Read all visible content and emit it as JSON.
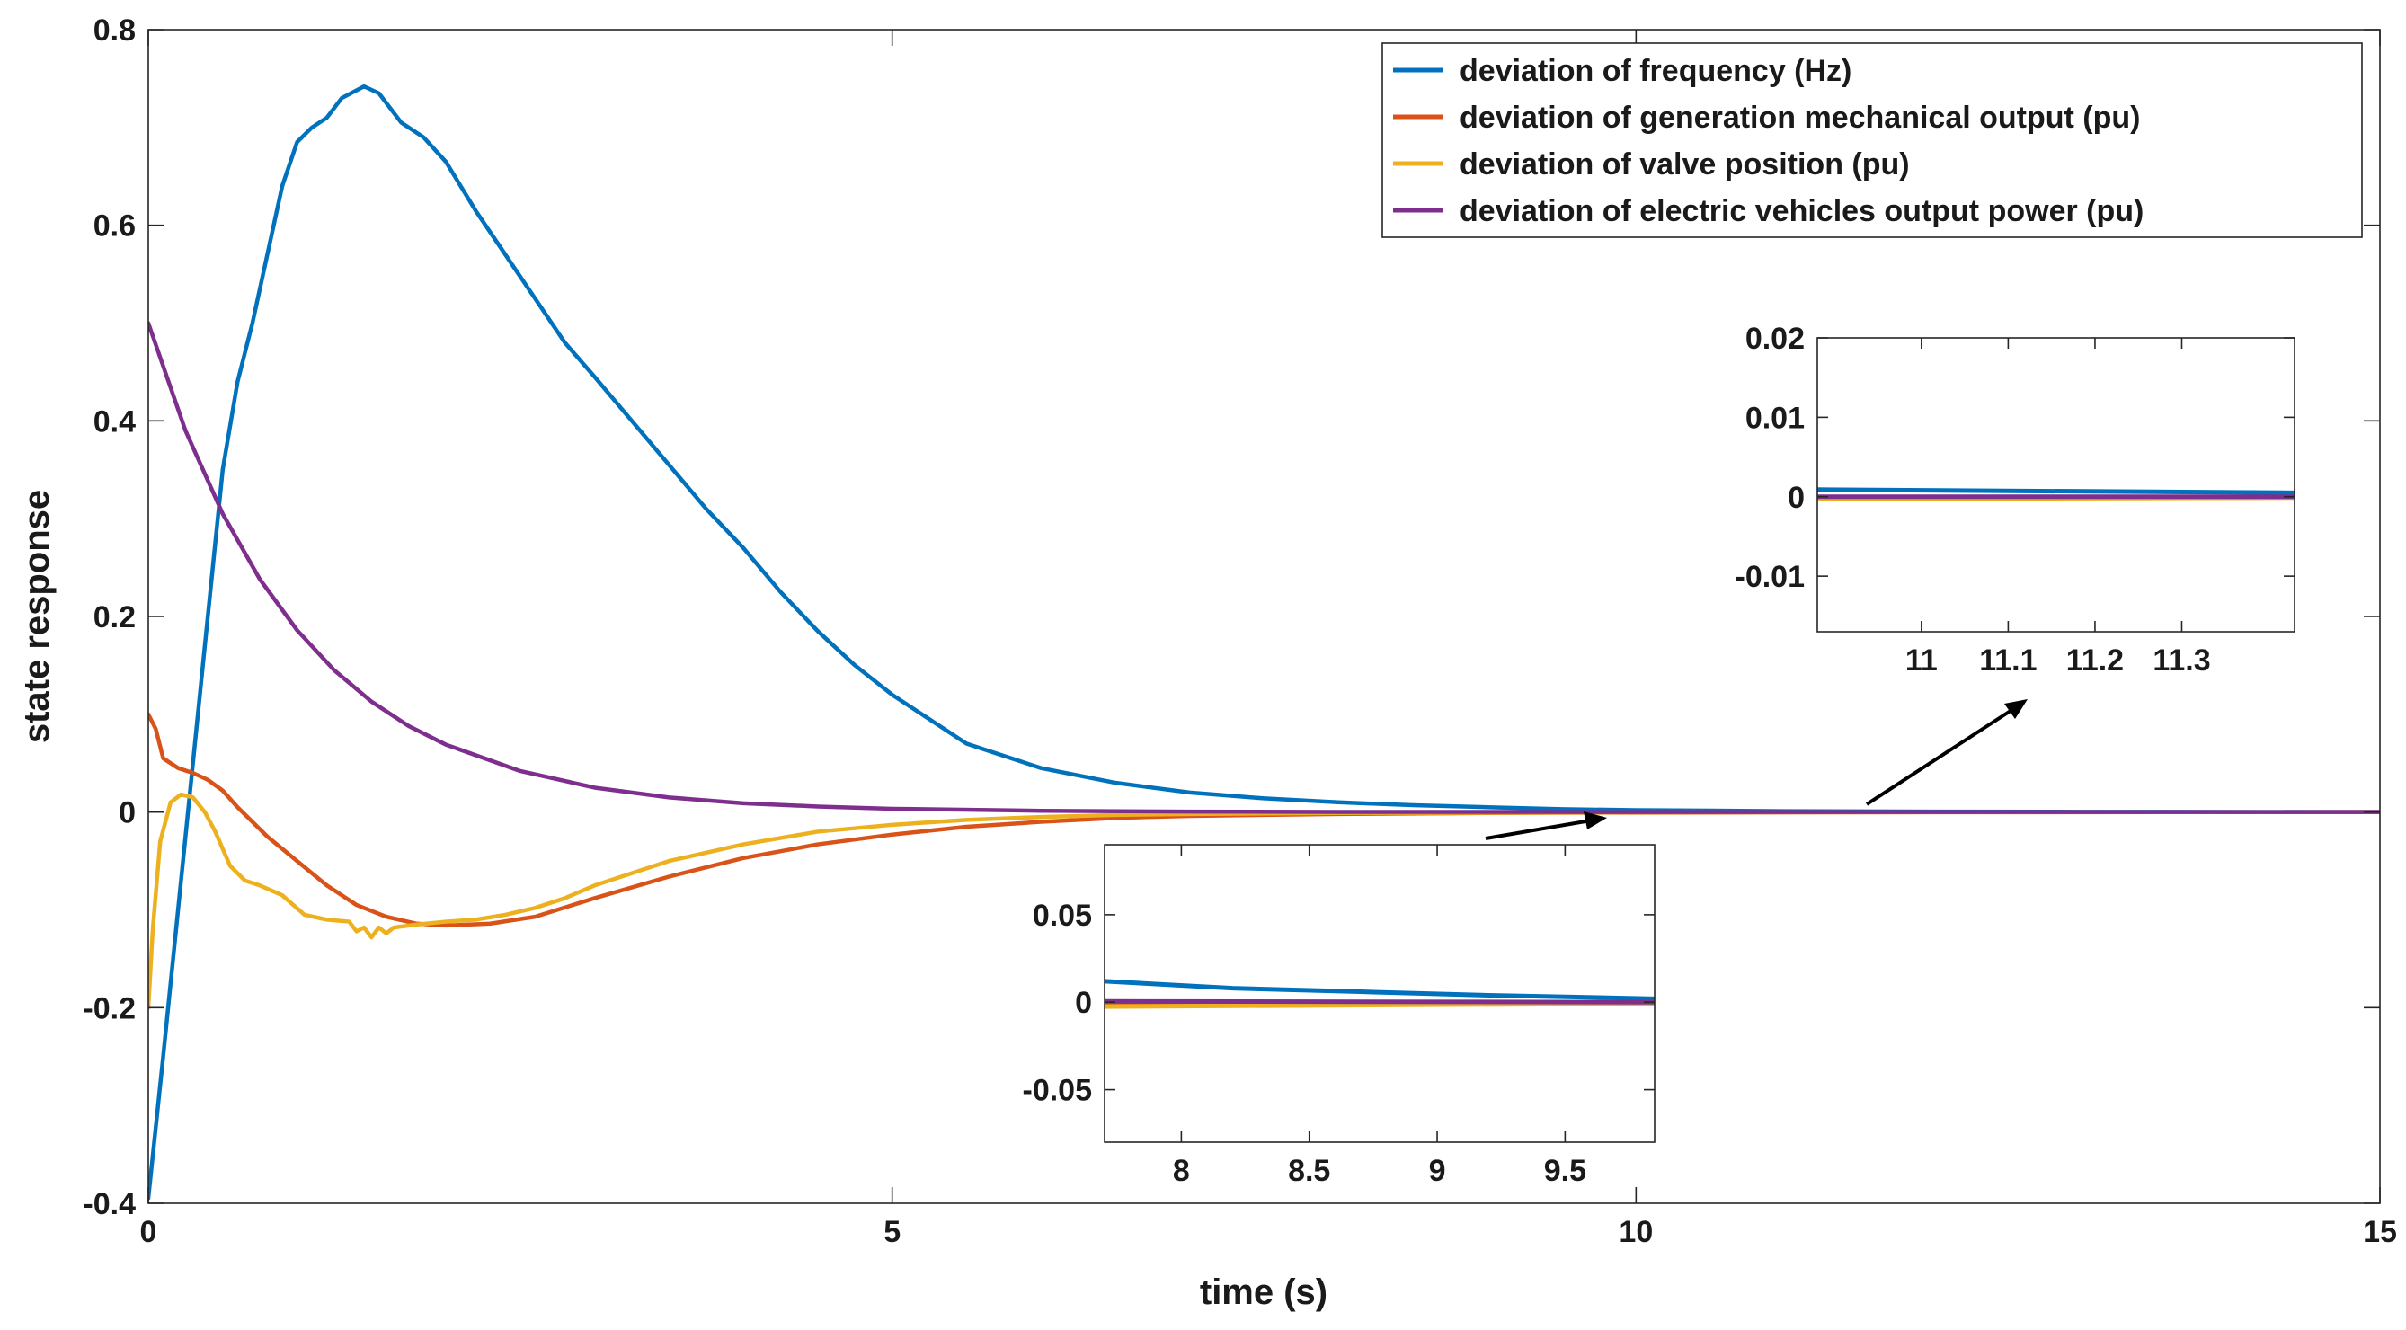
{
  "chart_data": [
    {
      "type": "line",
      "role": "main",
      "title": "",
      "xlabel": "time (s)",
      "ylabel": "state response",
      "xlim": [
        0,
        15
      ],
      "ylim": [
        -0.4,
        0.8
      ],
      "xticks": [
        0,
        5,
        10,
        15
      ],
      "yticks": [
        -0.4,
        -0.2,
        0,
        0.2,
        0.4,
        0.6,
        0.8
      ],
      "xtick_labels": [
        "0",
        "5",
        "10",
        "15"
      ],
      "ytick_labels": [
        "-0.4",
        "-0.2",
        "0",
        "0.2",
        "0.4",
        "0.6",
        "0.8"
      ],
      "legend_position": "top-right",
      "series": [
        {
          "name": "deviation of frequency (Hz)",
          "color": "#0072BD",
          "x": [
            0,
            0.1,
            0.2,
            0.3,
            0.4,
            0.5,
            0.6,
            0.7,
            0.8,
            0.9,
            1.0,
            1.1,
            1.2,
            1.3,
            1.45,
            1.55,
            1.7,
            1.85,
            2.0,
            2.2,
            2.4,
            2.6,
            2.8,
            3.0,
            3.25,
            3.5,
            3.75,
            4.0,
            4.25,
            4.5,
            4.75,
            5.0,
            5.5,
            6.0,
            6.5,
            7.0,
            7.5,
            8.0,
            8.5,
            9.0,
            9.5,
            10.0,
            11.0,
            12.0,
            13.0,
            15.0
          ],
          "y": [
            -0.395,
            -0.25,
            -0.1,
            0.05,
            0.2,
            0.35,
            0.44,
            0.5,
            0.57,
            0.64,
            0.685,
            0.7,
            0.71,
            0.73,
            0.742,
            0.735,
            0.705,
            0.69,
            0.665,
            0.615,
            0.57,
            0.525,
            0.48,
            0.445,
            0.4,
            0.355,
            0.31,
            0.27,
            0.225,
            0.185,
            0.15,
            0.12,
            0.07,
            0.045,
            0.03,
            0.02,
            0.014,
            0.01,
            0.007,
            0.005,
            0.003,
            0.002,
            0.001,
            0.0005,
            0.0003,
            0.0
          ]
        },
        {
          "name": "deviation of generation mechanical output (pu)",
          "color": "#D95319",
          "x": [
            0,
            0.05,
            0.1,
            0.2,
            0.3,
            0.4,
            0.5,
            0.6,
            0.8,
            1.0,
            1.2,
            1.4,
            1.6,
            1.8,
            2.0,
            2.3,
            2.6,
            3.0,
            3.5,
            4.0,
            4.5,
            5.0,
            5.5,
            6.0,
            6.5,
            7.0,
            7.5,
            8.0,
            9.0,
            10.0,
            12.0,
            15.0
          ],
          "y": [
            0.1,
            0.085,
            0.055,
            0.045,
            0.04,
            0.033,
            0.022,
            0.005,
            -0.025,
            -0.05,
            -0.075,
            -0.095,
            -0.107,
            -0.114,
            -0.116,
            -0.114,
            -0.107,
            -0.088,
            -0.066,
            -0.047,
            -0.033,
            -0.023,
            -0.015,
            -0.01,
            -0.006,
            -0.004,
            -0.003,
            -0.002,
            -0.001,
            -0.0006,
            -0.0002,
            0.0
          ]
        },
        {
          "name": "deviation of valve position (pu)",
          "color": "#EDB120",
          "x": [
            0,
            0.03,
            0.08,
            0.15,
            0.22,
            0.3,
            0.38,
            0.45,
            0.55,
            0.65,
            0.75,
            0.9,
            1.05,
            1.2,
            1.35,
            1.4,
            1.45,
            1.5,
            1.55,
            1.6,
            1.65,
            1.8,
            2.0,
            2.2,
            2.4,
            2.6,
            2.8,
            3.0,
            3.5,
            4.0,
            4.5,
            5.0,
            5.5,
            6.0,
            6.5,
            7.0,
            8.0,
            9.0,
            10.0,
            12.0,
            15.0
          ],
          "y": [
            -0.2,
            -0.12,
            -0.03,
            0.01,
            0.018,
            0.015,
            0.0,
            -0.02,
            -0.055,
            -0.07,
            -0.075,
            -0.085,
            -0.105,
            -0.11,
            -0.112,
            -0.122,
            -0.118,
            -0.128,
            -0.118,
            -0.124,
            -0.118,
            -0.115,
            -0.112,
            -0.11,
            -0.105,
            -0.098,
            -0.088,
            -0.075,
            -0.05,
            -0.033,
            -0.02,
            -0.013,
            -0.008,
            -0.005,
            -0.003,
            -0.002,
            -0.001,
            -0.0006,
            -0.0003,
            -0.0001,
            0.0
          ]
        },
        {
          "name": "deviation of electric vehicles output power (pu)",
          "color": "#7E2F8E",
          "x": [
            0,
            0.25,
            0.5,
            0.75,
            1.0,
            1.25,
            1.5,
            1.75,
            2.0,
            2.5,
            3.0,
            3.5,
            4.0,
            4.5,
            5.0,
            6.0,
            7.0,
            8.0,
            10.0,
            12.0,
            15.0
          ],
          "y": [
            0.5,
            0.39,
            0.305,
            0.238,
            0.186,
            0.145,
            0.113,
            0.088,
            0.069,
            0.042,
            0.025,
            0.015,
            0.009,
            0.0057,
            0.0034,
            0.0013,
            0.0005,
            0.0002,
            0.0,
            0.0,
            0.0
          ]
        }
      ]
    },
    {
      "type": "line",
      "role": "inset",
      "title": "",
      "xlim": [
        7.7,
        9.85
      ],
      "ylim": [
        -0.08,
        0.09
      ],
      "xticks": [
        8,
        8.5,
        9,
        9.5
      ],
      "yticks": [
        -0.05,
        0,
        0.05
      ],
      "xtick_labels": [
        "8",
        "8.5",
        "9",
        "9.5"
      ],
      "ytick_labels": [
        "-0.05",
        "0",
        "0.05"
      ],
      "series": [
        {
          "name": "deviation of frequency (Hz)",
          "color": "#0072BD",
          "x": [
            7.7,
            8.2,
            8.7,
            9.2,
            9.85
          ],
          "y": [
            0.012,
            0.008,
            0.006,
            0.004,
            0.002
          ]
        },
        {
          "name": "deviation of generation mechanical output (pu)",
          "color": "#D95319",
          "x": [
            7.7,
            9.85
          ],
          "y": [
            -0.002,
            -0.0005
          ]
        },
        {
          "name": "deviation of valve position (pu)",
          "color": "#EDB120",
          "x": [
            7.7,
            9.85
          ],
          "y": [
            -0.0025,
            -0.0008
          ]
        },
        {
          "name": "deviation of electric vehicles output power (pu)",
          "color": "#7E2F8E",
          "x": [
            7.7,
            9.85
          ],
          "y": [
            0.0005,
            0.0
          ]
        }
      ]
    },
    {
      "type": "line",
      "role": "inset",
      "title": "",
      "xlim": [
        10.88,
        11.43
      ],
      "ylim": [
        -0.017,
        0.02
      ],
      "xticks": [
        11,
        11.1,
        11.2,
        11.3
      ],
      "yticks": [
        -0.01,
        0,
        0.01,
        0.02
      ],
      "xtick_labels": [
        "11",
        "11.1",
        "11.2",
        "11.3"
      ],
      "ytick_labels": [
        "-0.01",
        "0",
        "0.01",
        "0.02"
      ],
      "series": [
        {
          "name": "deviation of frequency (Hz)",
          "color": "#0072BD",
          "x": [
            10.88,
            11.43
          ],
          "y": [
            0.0009,
            0.0005
          ]
        },
        {
          "name": "deviation of generation mechanical output (pu)",
          "color": "#D95319",
          "x": [
            10.88,
            11.43
          ],
          "y": [
            -0.0002,
            -0.0001
          ]
        },
        {
          "name": "deviation of valve position (pu)",
          "color": "#EDB120",
          "x": [
            10.88,
            11.43
          ],
          "y": [
            -0.0003,
            -0.0001
          ]
        },
        {
          "name": "deviation of electric vehicles output power (pu)",
          "color": "#7E2F8E",
          "x": [
            10.88,
            11.43
          ],
          "y": [
            0.0,
            0.0
          ]
        }
      ]
    }
  ]
}
